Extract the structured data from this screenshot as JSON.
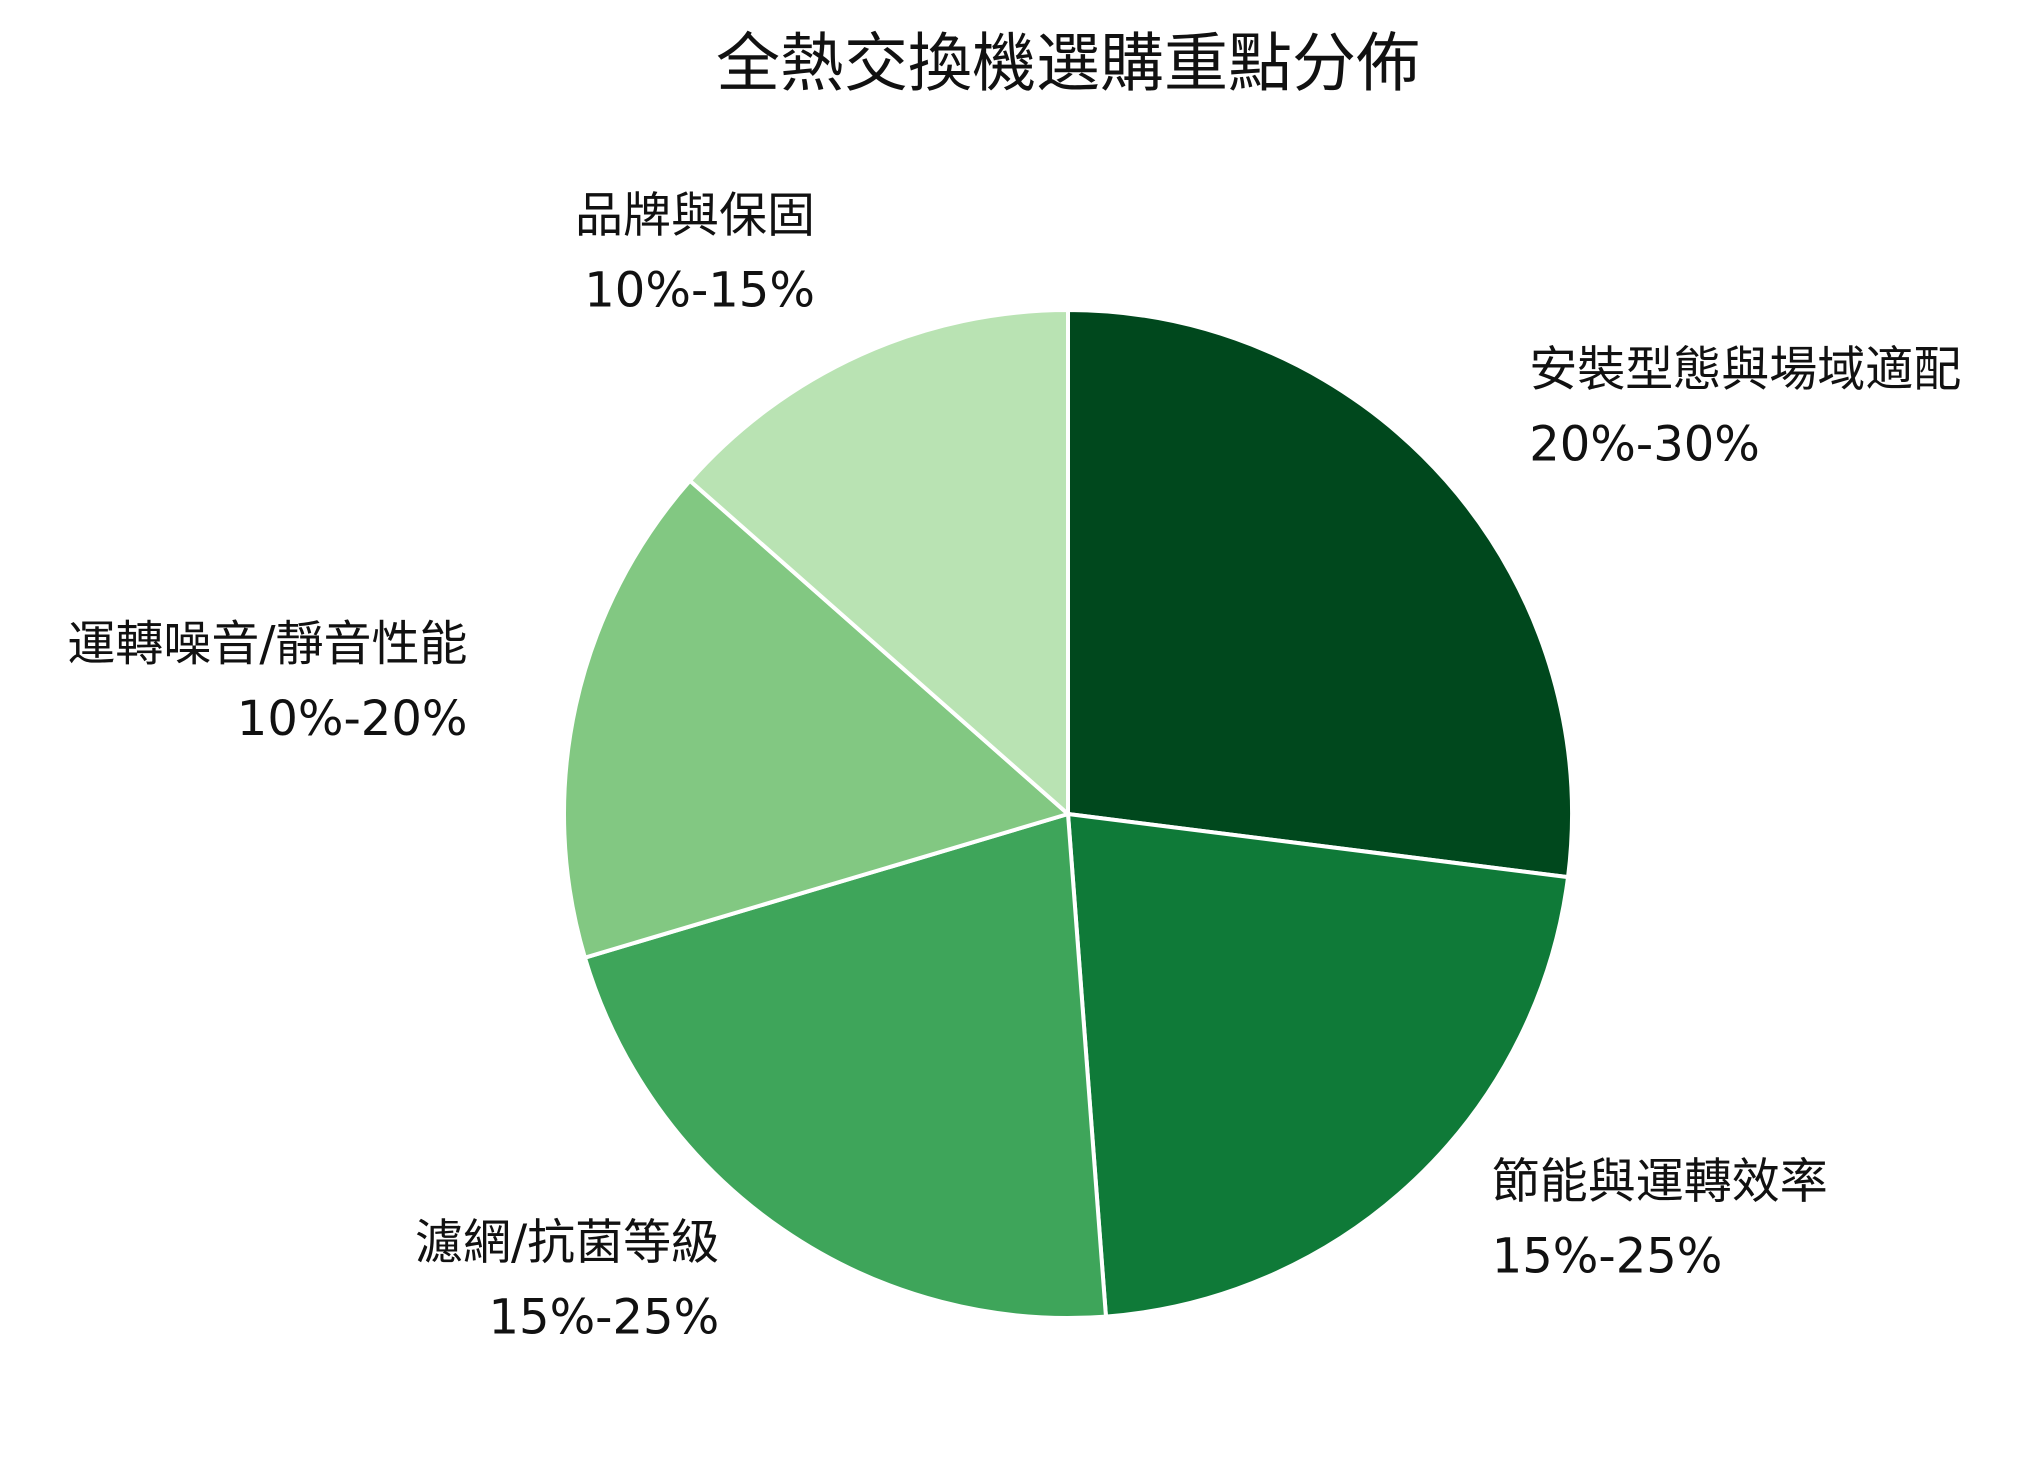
{
  "chart_data": {
    "type": "pie",
    "title": "全熱交換機選購重點分佈",
    "categories": [
      "安裝型態與場域適配",
      "節能與運轉效率",
      "濾網/抗菌等級",
      "運轉噪音/靜音性能",
      "品牌與保固"
    ],
    "values": [
      27,
      21.8,
      21.6,
      16.1,
      13.5
    ],
    "ranges": [
      "20%-30%",
      "15%-25%",
      "15%-25%",
      "10%-20%",
      "10%-15%"
    ],
    "colors": [
      "#00481d",
      "#0f7a38",
      "#3ea55a",
      "#82c882",
      "#b9e3b3"
    ]
  }
}
